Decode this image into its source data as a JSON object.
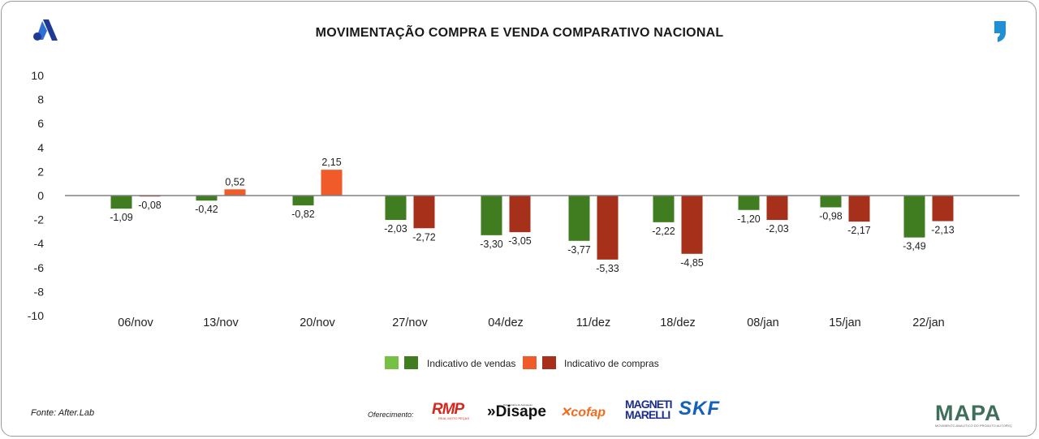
{
  "header": {
    "title": "MOVIMENTAÇÃO COMPRA E VENDA COMPARATIVO NACIONAL"
  },
  "footer": {
    "source": "Fonte: After.Lab",
    "offer_label": "Oferecimento:",
    "sponsors": [
      "RMP",
      "Disape",
      "cofap",
      "MAGNETI MARELLI",
      "SKF"
    ],
    "rmp_sub": "REAL MOTO PEÇAS",
    "disape_sub": "Distribuidora de Autopeças",
    "brand": "MAPA",
    "brand_sub": "MOVIMENTO ANALÍTICO DO PRODUTO AUTOPEÇAS"
  },
  "colors": {
    "vendas_light": "#76c043",
    "vendas_dark": "#3f7d20",
    "compras_light": "#f15a29",
    "compras_dark": "#a7301a",
    "axis": "#808080",
    "logo_blue": "#1f3a93",
    "comma_blue": "#1f8fd6"
  },
  "chart_data": {
    "type": "bar",
    "title": "MOVIMENTAÇÃO COMPRA E VENDA COMPARATIVO NACIONAL",
    "categories": [
      "06/nov",
      "13/nov",
      "20/nov",
      "27/nov",
      "04/dez",
      "11/dez",
      "18/dez",
      "08/jan",
      "15/jan",
      "22/jan"
    ],
    "series": [
      {
        "name": "Indicativo de vendas",
        "values": [
          -1.09,
          -0.42,
          -0.82,
          -2.03,
          -3.3,
          -3.77,
          -2.22,
          -1.2,
          -0.98,
          -3.49
        ],
        "labels": [
          "-1,09",
          "-0,42",
          "-0,82",
          "-2,03",
          "-3,30",
          "-3,77",
          "-2,22",
          "-1,20",
          "-0,98",
          "-3,49"
        ]
      },
      {
        "name": "Indicativo de compras",
        "values": [
          -0.08,
          0.52,
          2.15,
          -2.72,
          -3.05,
          -5.33,
          -4.85,
          -2.03,
          -2.17,
          -2.13
        ],
        "labels": [
          "-0,08",
          "0,52",
          "2,15",
          "-2,72",
          "-3,05",
          "-5,33",
          "-4,85",
          "-2,03",
          "-2,17",
          "-2,13"
        ]
      }
    ],
    "y_ticks": [
      10,
      8,
      6,
      4,
      2,
      0,
      -2,
      -4,
      -6,
      -8,
      -10
    ],
    "y_tick_labels": [
      "10",
      "8",
      "6",
      "4",
      "2",
      "0",
      "-2",
      "-4",
      "-6",
      "-8",
      "-10"
    ],
    "ylim": [
      -10,
      10
    ],
    "legend_position": "bottom-center",
    "grid": false
  }
}
